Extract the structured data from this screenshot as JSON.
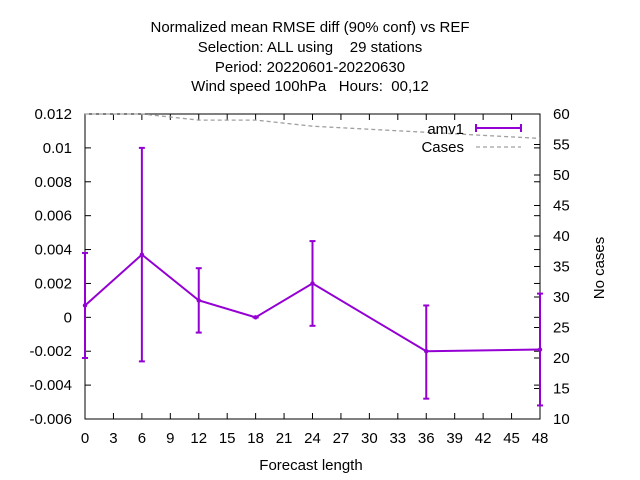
{
  "chart_data": {
    "type": "line",
    "title_lines": [
      "Normalized mean RMSE diff (90% conf) vs REF",
      "Selection: ALL using    29 stations",
      "Period: 20220601-20220630",
      "Wind speed 100hPa   Hours:  00,12"
    ],
    "xlabel": "Forecast length",
    "ylabel": "",
    "y2label": "No cases",
    "xlim": [
      0,
      48
    ],
    "ylim": [
      -0.006,
      0.012
    ],
    "y2lim": [
      10,
      60
    ],
    "x_ticks": [
      0,
      3,
      6,
      9,
      12,
      15,
      18,
      21,
      24,
      27,
      30,
      33,
      36,
      39,
      42,
      45,
      48
    ],
    "x_tick_labels": [
      "0",
      "3",
      "6",
      "9",
      "12",
      "15",
      "18",
      "21",
      "24",
      "27",
      "30",
      "33",
      "36",
      "39",
      "42",
      "45",
      "48"
    ],
    "y_ticks": [
      -0.006,
      -0.004,
      -0.002,
      0,
      0.002,
      0.004,
      0.006,
      0.008,
      0.01,
      0.012
    ],
    "y_tick_labels": [
      "-0.006",
      "-0.004",
      "-0.002",
      "0",
      "0.002",
      "0.004",
      "0.006",
      "0.008",
      "0.01",
      "0.012"
    ],
    "y2_ticks": [
      10,
      15,
      20,
      25,
      30,
      35,
      40,
      45,
      50,
      55,
      60
    ],
    "y2_tick_labels": [
      "10",
      "15",
      "20",
      "25",
      "30",
      "35",
      "40",
      "45",
      "50",
      "55",
      "60"
    ],
    "legend_position": "top-right",
    "grid": false,
    "series": [
      {
        "name": "amv1",
        "axis": "left",
        "style": "errorbars",
        "color": "#9400d3",
        "x": [
          0,
          6,
          12,
          18,
          24,
          36,
          48
        ],
        "y": [
          0.0007,
          0.0037,
          0.001,
          0.0,
          0.002,
          -0.002,
          -0.0019
        ],
        "ylow": [
          -0.0024,
          -0.0026,
          -0.0009,
          0.0,
          -0.0005,
          -0.0048,
          -0.0052
        ],
        "yhigh": [
          0.0038,
          0.01,
          0.0029,
          0.0,
          0.0045,
          0.0007,
          0.0014
        ]
      },
      {
        "name": "Cases",
        "axis": "right",
        "style": "dashed",
        "color": "#a0a0a0",
        "x": [
          0,
          6,
          12,
          18,
          24,
          36,
          48
        ],
        "y": [
          60,
          60,
          59,
          59,
          58,
          57,
          56
        ]
      }
    ]
  }
}
